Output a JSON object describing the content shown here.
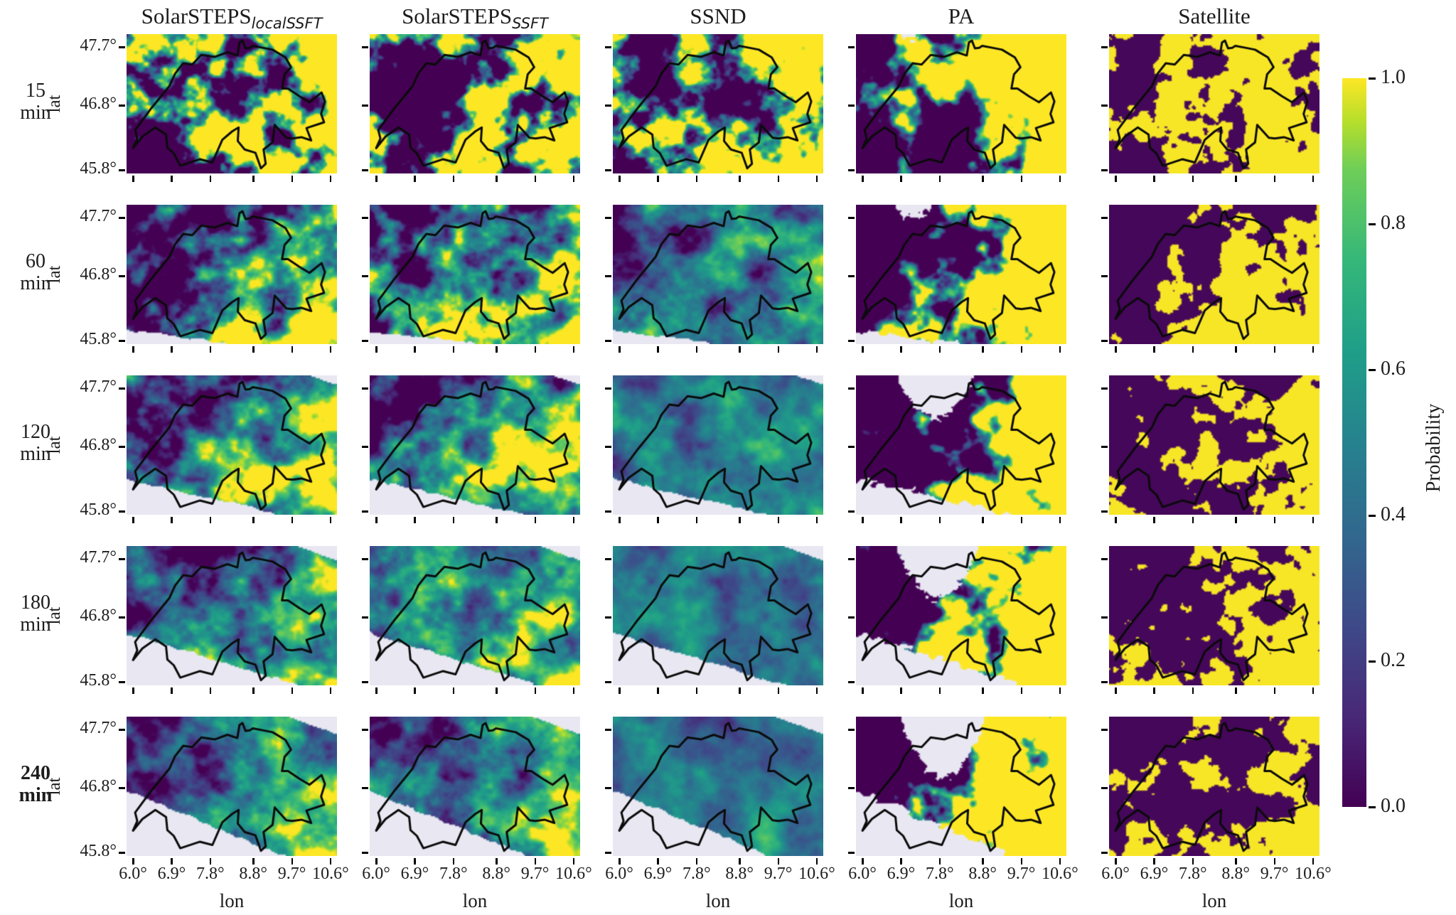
{
  "columns": [
    {
      "name": "SolarSTEPS",
      "subscript": "localSSFT"
    },
    {
      "name": "SolarSTEPS",
      "subscript": "SSFT"
    },
    {
      "name": "SSND",
      "subscript": ""
    },
    {
      "name": "PA",
      "subscript": ""
    },
    {
      "name": "Satellite",
      "subscript": ""
    }
  ],
  "rows": [
    {
      "time": "15",
      "unit": "min"
    },
    {
      "time": "60",
      "unit": "min"
    },
    {
      "time": "120",
      "unit": "min"
    },
    {
      "time": "180",
      "unit": "min"
    },
    {
      "time": "240",
      "unit": "min"
    }
  ],
  "chart_data": {
    "type": "heatmap",
    "description": "5x5 grid of cloud-probability maps over Switzerland. Columns are forecasting methods (SolarSTEPS_localSSFT, SolarSTEPS_SSFT, SSND, PA, Satellite); rows are forecast lead times in minutes. Each panel shows probability (viridis colormap, 0-1) with the Swiss border overlaid in black. Ensemble methods become smoother with lead time; PA and Satellite stay near-binary; a light-grey no-data wedge advects in from the bottom-left with increasing lead time, and PA shows a growing no-data wedge at top centre.",
    "methods": [
      "SolarSTEPS_localSSFT",
      "SolarSTEPS_SSFT",
      "SSND",
      "PA",
      "Satellite"
    ],
    "lead_times_min": [
      15,
      60,
      120,
      180,
      240
    ],
    "x_axis": {
      "label": "lon",
      "tick_values": [
        6.0,
        6.9,
        7.8,
        8.8,
        9.7,
        10.6
      ],
      "tick_labels": [
        "6.0°",
        "6.9°",
        "7.8°",
        "8.8°",
        "9.7°",
        "10.6°"
      ],
      "range": [
        5.85,
        10.75
      ]
    },
    "y_axis": {
      "label": "lat",
      "tick_values": [
        47.7,
        46.8,
        45.8
      ],
      "tick_labels": [
        "47.7°",
        "46.8°",
        "45.8°"
      ],
      "range": [
        45.75,
        47.9
      ]
    },
    "colorbar": {
      "label": "Probability",
      "tick_values": [
        1.0,
        0.8,
        0.6,
        0.4,
        0.2,
        0.0
      ],
      "tick_labels": [
        "1.0",
        "0.8",
        "0.6",
        "0.4",
        "0.2",
        "0.0"
      ],
      "colormap": "viridis",
      "stops": [
        [
          0,
          "#440154"
        ],
        [
          0.125,
          "#482878"
        ],
        [
          0.25,
          "#3e4a89"
        ],
        [
          0.375,
          "#31688e"
        ],
        [
          0.5,
          "#26828e"
        ],
        [
          0.625,
          "#1f9e89"
        ],
        [
          0.75,
          "#35b779"
        ],
        [
          0.875,
          "#6ece58"
        ],
        [
          0.94,
          "#b5de2b"
        ],
        [
          1,
          "#fde725"
        ]
      ]
    },
    "no_data_color": "#e9e8f2",
    "outline_color": "#0b0b0b",
    "switzerland_outline_lonlat": [
      [
        7.59,
        47.58
      ],
      [
        7.91,
        47.55
      ],
      [
        8.2,
        47.62
      ],
      [
        8.43,
        47.57
      ],
      [
        8.48,
        47.77
      ],
      [
        8.55,
        47.8
      ],
      [
        8.62,
        47.68
      ],
      [
        8.72,
        47.69
      ],
      [
        8.79,
        47.72
      ],
      [
        9.02,
        47.69
      ],
      [
        9.25,
        47.66
      ],
      [
        9.55,
        47.54
      ],
      [
        9.68,
        47.39
      ],
      [
        9.53,
        47.28
      ],
      [
        9.47,
        47.06
      ],
      [
        9.61,
        47.06
      ],
      [
        9.88,
        46.94
      ],
      [
        10.11,
        46.85
      ],
      [
        10.39,
        47.0
      ],
      [
        10.47,
        46.86
      ],
      [
        10.38,
        46.67
      ],
      [
        10.45,
        46.54
      ],
      [
        10.04,
        46.45
      ],
      [
        10.15,
        46.26
      ],
      [
        9.92,
        46.31
      ],
      [
        9.71,
        46.29
      ],
      [
        9.57,
        46.3
      ],
      [
        9.3,
        46.5
      ],
      [
        9.25,
        46.23
      ],
      [
        9.04,
        46.12
      ],
      [
        9.09,
        45.9
      ],
      [
        8.98,
        45.83
      ],
      [
        8.85,
        46.07
      ],
      [
        8.6,
        46.12
      ],
      [
        8.44,
        46.25
      ],
      [
        8.46,
        46.46
      ],
      [
        8.31,
        46.4
      ],
      [
        8.08,
        46.27
      ],
      [
        7.85,
        45.92
      ],
      [
        7.56,
        45.97
      ],
      [
        7.1,
        45.87
      ],
      [
        6.95,
        46.06
      ],
      [
        6.8,
        46.15
      ],
      [
        6.77,
        46.35
      ],
      [
        6.52,
        46.46
      ],
      [
        6.22,
        46.32
      ],
      [
        6.0,
        46.14
      ],
      [
        6.1,
        46.29
      ],
      [
        6.05,
        46.42
      ],
      [
        6.43,
        46.76
      ],
      [
        6.85,
        47.1
      ],
      [
        6.98,
        47.29
      ],
      [
        7.17,
        47.45
      ],
      [
        7.38,
        47.43
      ]
    ],
    "render_params": {
      "geo_extent": {
        "lon": [
          5.85,
          10.75
        ],
        "lat": [
          45.75,
          47.9
        ]
      },
      "columns": [
        {
          "type": "smooth",
          "freq": [
            5.5,
            4.0
          ],
          "contrast": [
            8,
            3.4,
            2.6,
            2.2,
            2.0
          ],
          "bias_u": [
            0.2,
            0.28,
            0.26,
            0.22,
            0.22
          ],
          "bias_v": [
            0.1,
            0.2,
            0.18,
            0.15,
            0.15
          ],
          "bias_0": [
            0.02,
            0,
            0,
            0,
            0
          ]
        },
        {
          "type": "smooth",
          "freq": [
            5.5,
            4.0
          ],
          "contrast": [
            8,
            3.4,
            2.6,
            2.2,
            2.0
          ],
          "bias_u": [
            0.2,
            0.28,
            0.26,
            0.22,
            0.22
          ],
          "bias_v": [
            0.1,
            0.2,
            0.18,
            0.15,
            0.15
          ],
          "bias_0": [
            0.02,
            0,
            0,
            0,
            0
          ]
        },
        {
          "type": "smooth",
          "freq": [
            5.5,
            4.0
          ],
          "contrast": [
            7,
            1.9,
            1.2,
            1.0,
            0.95
          ],
          "bias_u": [
            0.2,
            0.15,
            0.08,
            0.06,
            0.06
          ],
          "bias_v": [
            0.1,
            0.1,
            0.05,
            0.04,
            0.05
          ],
          "bias_0": [
            0.02,
            -0.01,
            -0.02,
            -0.02,
            -0.02
          ]
        },
        {
          "type": "smooth",
          "freq": [
            4.5,
            3.2
          ],
          "contrast": [
            9,
            9,
            9,
            9,
            9
          ],
          "bias_u": [
            0.5,
            0.55,
            0.55,
            0.55,
            0.55
          ],
          "bias_v": [
            0.05,
            0.08,
            0.08,
            0.08,
            0.08
          ],
          "bias_0": [
            0,
            0.02,
            0.02,
            0.02,
            0.02
          ]
        },
        {
          "type": "binary",
          "freq": [
            6.5,
            4.5
          ],
          "contrast": [
            12,
            12,
            12,
            12,
            12
          ],
          "bias_u": [
            0.2,
            0.3,
            0.25,
            0.2,
            0.15
          ],
          "bias_v": [
            0.05,
            0.25,
            0.05,
            0.0,
            0.1
          ],
          "bias_0": [
            0.02,
            0,
            0,
            -0.03,
            -0.02
          ]
        }
      ],
      "advection_mask": {
        "applies_to_cols": [
          0,
          1,
          2,
          3
        ],
        "left_lat": [
          null,
          45.95,
          46.3,
          46.55,
          46.75
        ],
        "bottom_lon": [
          null,
          8.3,
          9.4,
          9.8,
          9.5
        ]
      },
      "topright_mask": {
        "applies_to_cols": [
          0,
          1,
          2
        ],
        "u_start": [
          null,
          null,
          0.88,
          0.82,
          0.78
        ],
        "v_end": [
          null,
          null,
          0.06,
          0.1,
          0.12
        ]
      },
      "pa_top_mask": {
        "lon_span": [
          [
            6.9,
            7.3
          ],
          [
            6.75,
            7.6
          ],
          [
            6.8,
            8.6
          ],
          [
            6.8,
            8.7
          ],
          [
            6.9,
            8.85
          ]
        ],
        "depth_lat": [
          47.8,
          47.72,
          47.25,
          47.1,
          46.95
        ]
      },
      "seeds": [
        [
          11,
          12,
          13,
          14,
          15
        ],
        [
          21,
          22,
          23,
          24,
          25
        ],
        [
          31,
          32,
          33,
          34,
          35
        ],
        [
          41,
          42,
          43,
          44,
          45
        ],
        [
          51,
          52,
          53,
          54,
          55
        ]
      ]
    }
  },
  "colors": {
    "background": "#ffffff",
    "text": "#1c1c1c",
    "tick": "#000000"
  }
}
